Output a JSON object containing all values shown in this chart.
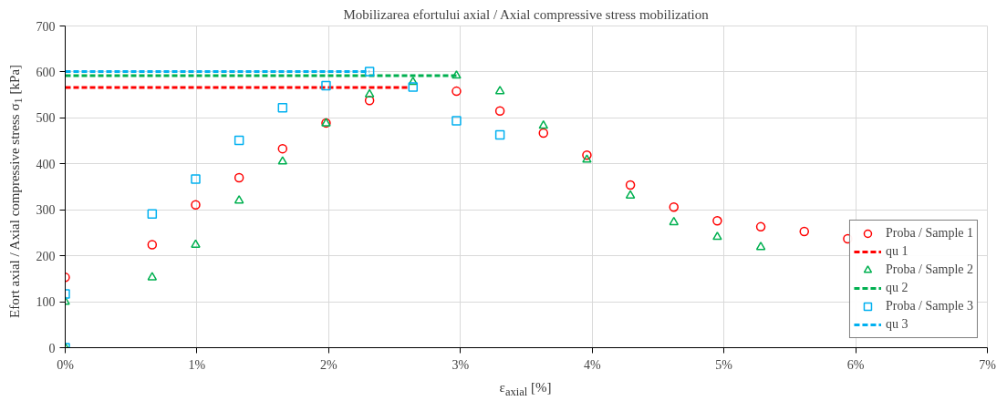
{
  "chart_data": {
    "type": "scatter",
    "title": "Mobilizarea efortului axial / Axial compressive stress mobilization",
    "xlabel": "ε$_{axial}$ [%]",
    "ylabel": "Efort axial / Axial compressive stress σ$_{1}$ [kPa]",
    "xlim": [
      0,
      7
    ],
    "xticks": [
      {
        "value": 0,
        "label": "0%"
      },
      {
        "value": 1,
        "label": "1%"
      },
      {
        "value": 2,
        "label": "2%"
      },
      {
        "value": 3,
        "label": "3%"
      },
      {
        "value": 4,
        "label": "4%"
      },
      {
        "value": 5,
        "label": "5%"
      },
      {
        "value": 6,
        "label": "6%"
      },
      {
        "value": 7,
        "label": "7%"
      }
    ],
    "ylim": [
      0,
      700
    ],
    "yticks": [
      0,
      100,
      200,
      300,
      400,
      500,
      600,
      700
    ],
    "grid": true,
    "legend": "bottom right",
    "series": [
      {
        "name": "Proba / Sample 1",
        "type": "scatter",
        "marker": "circle",
        "color": "#ff0000",
        "x": [
          0,
          0.66,
          0.99,
          1.32,
          1.65,
          1.98,
          2.31,
          2.97,
          3.3,
          3.63,
          3.96,
          4.29,
          4.62,
          4.95,
          5.28,
          5.61,
          5.94
        ],
        "values": [
          153,
          224,
          311,
          370,
          433,
          489,
          538,
          558,
          515,
          467,
          419,
          354,
          306,
          276,
          263,
          253,
          237
        ]
      },
      {
        "name": "qu 1",
        "type": "line",
        "line_style": "dashed",
        "color": "#ff0000",
        "x": [
          0,
          2.6
        ],
        "values": [
          566,
          566
        ]
      },
      {
        "name": "Proba / Sample 2",
        "type": "scatter",
        "marker": "triangle",
        "color": "#00b050",
        "x": [
          0,
          0,
          0.66,
          0.99,
          1.32,
          1.65,
          1.98,
          2.31,
          2.64,
          2.97,
          3.3,
          3.63,
          3.96,
          4.29,
          4.62,
          4.95,
          5.28
        ],
        "values": [
          0,
          100,
          153,
          224,
          320,
          405,
          488,
          551,
          578,
          592,
          558,
          483,
          409,
          331,
          273,
          241,
          219
        ]
      },
      {
        "name": "qu 2",
        "type": "line",
        "line_style": "dashed",
        "color": "#00b050",
        "x": [
          0,
          2.97
        ],
        "values": [
          592,
          592
        ]
      },
      {
        "name": "Proba / Sample 3",
        "type": "scatter",
        "marker": "square",
        "color": "#00b0f0",
        "x": [
          0,
          0,
          0.66,
          0.99,
          1.32,
          1.65,
          1.98,
          2.31,
          2.64,
          2.97,
          3.3
        ],
        "values": [
          0,
          117,
          291,
          367,
          451,
          522,
          570,
          601,
          567,
          494,
          463
        ]
      },
      {
        "name": "qu 3",
        "type": "line",
        "line_style": "dashed",
        "color": "#00b0f0",
        "x": [
          0,
          2.31
        ],
        "values": [
          601,
          601
        ]
      }
    ]
  }
}
